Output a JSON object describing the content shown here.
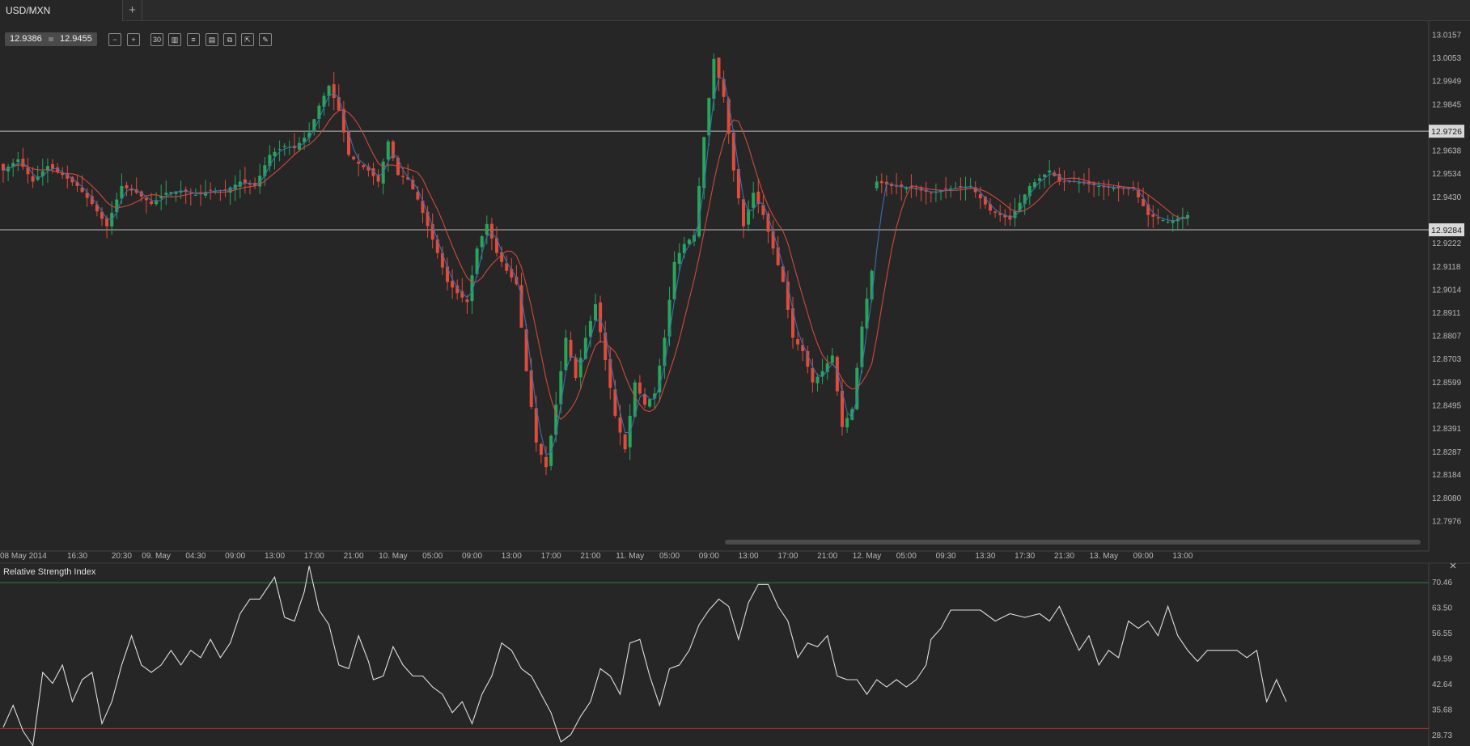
{
  "tabs": {
    "active_label": "USD/MXN",
    "add_label": "+"
  },
  "quote": {
    "bid": "12.9386",
    "ask": "12.9455"
  },
  "toolbar": {
    "buttons": [
      {
        "name": "zoom-out-icon",
        "glyph": "−"
      },
      {
        "name": "zoom-in-icon",
        "glyph": "+"
      },
      {
        "name": "timeframe-button",
        "glyph": "30"
      },
      {
        "name": "chart-type-icon",
        "glyph": "▥"
      },
      {
        "name": "indicators-icon",
        "glyph": "≡"
      },
      {
        "name": "template-icon",
        "glyph": "▤"
      },
      {
        "name": "copy-icon",
        "glyph": "⧉"
      },
      {
        "name": "screenshot-icon",
        "glyph": "⇱"
      },
      {
        "name": "drawing-icon",
        "glyph": "✎"
      }
    ]
  },
  "colors": {
    "background": "#262626",
    "up": "#26a65b",
    "down": "#e04b3b",
    "ma_fast": "#3a6fb0",
    "ma_slow": "#d0493a",
    "rsi_line": "#dedede",
    "rsi_upper": "#2f7d3a",
    "rsi_lower": "#b3322b",
    "hline": "#bdbdbd"
  },
  "chart_data": [
    {
      "type": "candlestick",
      "title": "USD/MXN",
      "ylim": [
        12.792,
        13.022
      ],
      "y_ticks": [
        "13.0157",
        "13.0053",
        "12.9949",
        "12.9845",
        "12.9638",
        "12.9534",
        "12.9430",
        "12.9222",
        "12.9118",
        "12.9014",
        "12.8911",
        "12.8807",
        "12.8703",
        "12.8599",
        "12.8495",
        "12.8391",
        "12.8287",
        "12.8184",
        "12.8080",
        "12.7976"
      ],
      "y_tick_values": [
        13.0157,
        13.0053,
        12.9949,
        12.9845,
        12.9638,
        12.9534,
        12.943,
        12.9222,
        12.9118,
        12.9014,
        12.8911,
        12.8807,
        12.8703,
        12.8599,
        12.8495,
        12.8391,
        12.8287,
        12.8184,
        12.808,
        12.7976
      ],
      "horizontal_lines": [
        {
          "label": "12.9726",
          "value": 12.9726
        },
        {
          "label": "12.9284",
          "value": 12.9284
        }
      ],
      "x_ticks": [
        "08 May 2014",
        "16:30",
        "20:30",
        "09. May",
        "04:30",
        "09:00",
        "13:00",
        "17:00",
        "21:00",
        "10. May",
        "05:00",
        "09:00",
        "13:00",
        "17:00",
        "21:00",
        "11. May",
        "05:00",
        "09:00",
        "13:00",
        "17:00",
        "21:00",
        "12. May",
        "05:00",
        "09:30",
        "13:30",
        "17:30",
        "21:30",
        "13. May",
        "09:00",
        "13:00"
      ],
      "x_tick_candle_index": [
        0,
        15,
        24,
        31,
        39,
        47,
        55,
        63,
        71,
        79,
        87,
        95,
        103,
        111,
        119,
        127,
        135,
        143,
        151,
        159,
        167,
        175,
        183,
        191,
        199,
        207,
        215,
        223,
        231,
        239
      ],
      "anchors": [
        [
          0,
          12.955
        ],
        [
          3,
          12.96
        ],
        [
          6,
          12.95
        ],
        [
          9,
          12.957
        ],
        [
          12,
          12.953
        ],
        [
          15,
          12.948
        ],
        [
          18,
          12.94
        ],
        [
          21,
          12.93
        ],
        [
          24,
          12.948
        ],
        [
          27,
          12.945
        ],
        [
          30,
          12.94
        ],
        [
          33,
          12.945
        ],
        [
          36,
          12.946
        ],
        [
          39,
          12.944
        ],
        [
          42,
          12.946
        ],
        [
          45,
          12.946
        ],
        [
          48,
          12.95
        ],
        [
          51,
          12.948
        ],
        [
          54,
          12.962
        ],
        [
          57,
          12.966
        ],
        [
          59,
          12.965
        ],
        [
          62,
          12.972
        ],
        [
          64,
          12.984
        ],
        [
          66,
          12.993
        ],
        [
          68,
          12.982
        ],
        [
          70,
          12.962
        ],
        [
          72,
          12.958
        ],
        [
          74,
          12.955
        ],
        [
          76,
          12.95
        ],
        [
          78,
          12.968
        ],
        [
          80,
          12.953
        ],
        [
          82,
          12.951
        ],
        [
          84,
          12.942
        ],
        [
          86,
          12.93
        ],
        [
          88,
          12.918
        ],
        [
          90,
          12.905
        ],
        [
          92,
          12.9
        ],
        [
          94,
          12.896
        ],
        [
          96,
          12.92
        ],
        [
          98,
          12.931
        ],
        [
          100,
          12.918
        ],
        [
          102,
          12.91
        ],
        [
          104,
          12.904
        ],
        [
          106,
          12.865
        ],
        [
          108,
          12.833
        ],
        [
          110,
          12.822
        ],
        [
          112,
          12.85
        ],
        [
          114,
          12.88
        ],
        [
          116,
          12.862
        ],
        [
          118,
          12.88
        ],
        [
          120,
          12.895
        ],
        [
          122,
          12.87
        ],
        [
          124,
          12.845
        ],
        [
          126,
          12.83
        ],
        [
          128,
          12.86
        ],
        [
          130,
          12.85
        ],
        [
          132,
          12.855
        ],
        [
          134,
          12.88
        ],
        [
          136,
          12.914
        ],
        [
          138,
          12.922
        ],
        [
          140,
          12.926
        ],
        [
          142,
          12.97
        ],
        [
          144,
          13.005
        ],
        [
          146,
          12.988
        ],
        [
          148,
          12.955
        ],
        [
          150,
          12.93
        ],
        [
          152,
          12.945
        ],
        [
          154,
          12.935
        ],
        [
          156,
          12.92
        ],
        [
          158,
          12.905
        ],
        [
          160,
          12.88
        ],
        [
          162,
          12.874
        ],
        [
          164,
          12.86
        ],
        [
          166,
          12.865
        ],
        [
          168,
          12.872
        ],
        [
          170,
          12.84
        ],
        [
          172,
          12.848
        ],
        [
          174,
          12.885
        ],
        [
          176,
          12.91
        ],
        [
          177,
          12.95
        ],
        [
          180,
          12.948
        ],
        [
          184,
          12.947
        ],
        [
          188,
          12.945
        ],
        [
          192,
          12.947
        ],
        [
          196,
          12.948
        ],
        [
          200,
          12.937
        ],
        [
          204,
          12.933
        ],
        [
          208,
          12.948
        ],
        [
          212,
          12.955
        ],
        [
          214,
          12.95
        ],
        [
          217,
          12.95
        ],
        [
          222,
          12.948
        ],
        [
          226,
          12.947
        ],
        [
          229,
          12.947
        ],
        [
          232,
          12.935
        ],
        [
          236,
          12.932
        ],
        [
          240,
          12.935
        ]
      ],
      "gap_after_index": 176,
      "ma_fast": {
        "period": 3
      },
      "ma_slow": {
        "period": 8
      }
    },
    {
      "type": "line",
      "title": "Relative Strength Index",
      "ylim": [
        25.9,
        75.8
      ],
      "y_ticks": [
        "70.46",
        "63.50",
        "56.55",
        "49.59",
        "42.64",
        "35.68",
        "28.73"
      ],
      "y_tick_values": [
        70.46,
        63.5,
        56.55,
        49.59,
        42.64,
        35.68,
        28.73
      ],
      "levels": [
        70.46,
        30.67
      ],
      "anchors": [
        [
          0,
          31
        ],
        [
          2,
          37
        ],
        [
          4,
          30
        ],
        [
          6,
          26
        ],
        [
          8,
          46
        ],
        [
          10,
          43
        ],
        [
          12,
          48
        ],
        [
          14,
          38
        ],
        [
          16,
          44
        ],
        [
          18,
          46
        ],
        [
          20,
          32
        ],
        [
          22,
          38
        ],
        [
          24,
          48
        ],
        [
          26,
          56
        ],
        [
          28,
          48
        ],
        [
          30,
          46
        ],
        [
          32,
          48
        ],
        [
          34,
          52
        ],
        [
          36,
          48
        ],
        [
          38,
          52
        ],
        [
          40,
          50
        ],
        [
          42,
          55
        ],
        [
          44,
          50
        ],
        [
          46,
          54
        ],
        [
          48,
          62
        ],
        [
          50,
          66
        ],
        [
          52,
          66
        ],
        [
          54,
          70
        ],
        [
          55,
          72
        ],
        [
          57,
          61
        ],
        [
          59,
          60
        ],
        [
          61,
          68
        ],
        [
          62,
          75
        ],
        [
          64,
          63
        ],
        [
          66,
          59
        ],
        [
          68,
          48
        ],
        [
          70,
          47
        ],
        [
          72,
          56
        ],
        [
          74,
          49
        ],
        [
          75,
          44
        ],
        [
          77,
          45
        ],
        [
          79,
          53
        ],
        [
          81,
          48
        ],
        [
          83,
          45
        ],
        [
          85,
          45
        ],
        [
          87,
          42
        ],
        [
          89,
          40
        ],
        [
          91,
          35
        ],
        [
          93,
          38
        ],
        [
          95,
          32
        ],
        [
          97,
          40
        ],
        [
          99,
          45
        ],
        [
          101,
          54
        ],
        [
          103,
          52
        ],
        [
          105,
          47
        ],
        [
          107,
          45
        ],
        [
          109,
          40
        ],
        [
          111,
          35
        ],
        [
          113,
          27
        ],
        [
          115,
          29
        ],
        [
          117,
          34
        ],
        [
          119,
          38
        ],
        [
          121,
          47
        ],
        [
          123,
          45
        ],
        [
          125,
          40
        ],
        [
          127,
          54
        ],
        [
          129,
          55
        ],
        [
          131,
          45
        ],
        [
          133,
          37
        ],
        [
          135,
          47
        ],
        [
          137,
          48
        ],
        [
          139,
          52
        ],
        [
          141,
          59
        ],
        [
          143,
          63
        ],
        [
          145,
          66
        ],
        [
          147,
          64
        ],
        [
          149,
          55
        ],
        [
          151,
          65
        ],
        [
          153,
          70
        ],
        [
          155,
          70
        ],
        [
          157,
          64
        ],
        [
          159,
          60
        ],
        [
          161,
          50
        ],
        [
          163,
          54
        ],
        [
          165,
          53
        ],
        [
          167,
          56
        ],
        [
          169,
          45
        ],
        [
          171,
          44
        ],
        [
          173,
          44
        ],
        [
          175,
          40
        ],
        [
          177,
          44
        ],
        [
          179,
          42
        ],
        [
          181,
          44
        ],
        [
          183,
          42
        ],
        [
          185,
          44
        ],
        [
          187,
          48
        ],
        [
          188,
          55
        ],
        [
          190,
          58
        ],
        [
          192,
          63
        ],
        [
          195,
          63
        ],
        [
          198,
          63
        ],
        [
          201,
          60
        ],
        [
          204,
          62
        ],
        [
          207,
          61
        ],
        [
          210,
          62
        ],
        [
          212,
          60
        ],
        [
          214,
          64
        ],
        [
          216,
          58
        ],
        [
          218,
          52
        ],
        [
          220,
          56
        ],
        [
          222,
          48
        ],
        [
          224,
          52
        ],
        [
          226,
          50
        ],
        [
          228,
          60
        ],
        [
          230,
          58
        ],
        [
          232,
          60
        ],
        [
          234,
          56
        ],
        [
          236,
          64
        ],
        [
          238,
          56
        ],
        [
          240,
          52
        ],
        [
          242,
          49
        ],
        [
          244,
          52
        ],
        [
          247,
          52
        ],
        [
          250,
          52
        ],
        [
          252,
          50
        ],
        [
          254,
          52
        ],
        [
          256,
          38
        ],
        [
          258,
          44
        ],
        [
          260,
          38
        ]
      ]
    }
  ],
  "rsi_panel": {
    "title": "Relative Strength Index",
    "close_label": "×"
  }
}
